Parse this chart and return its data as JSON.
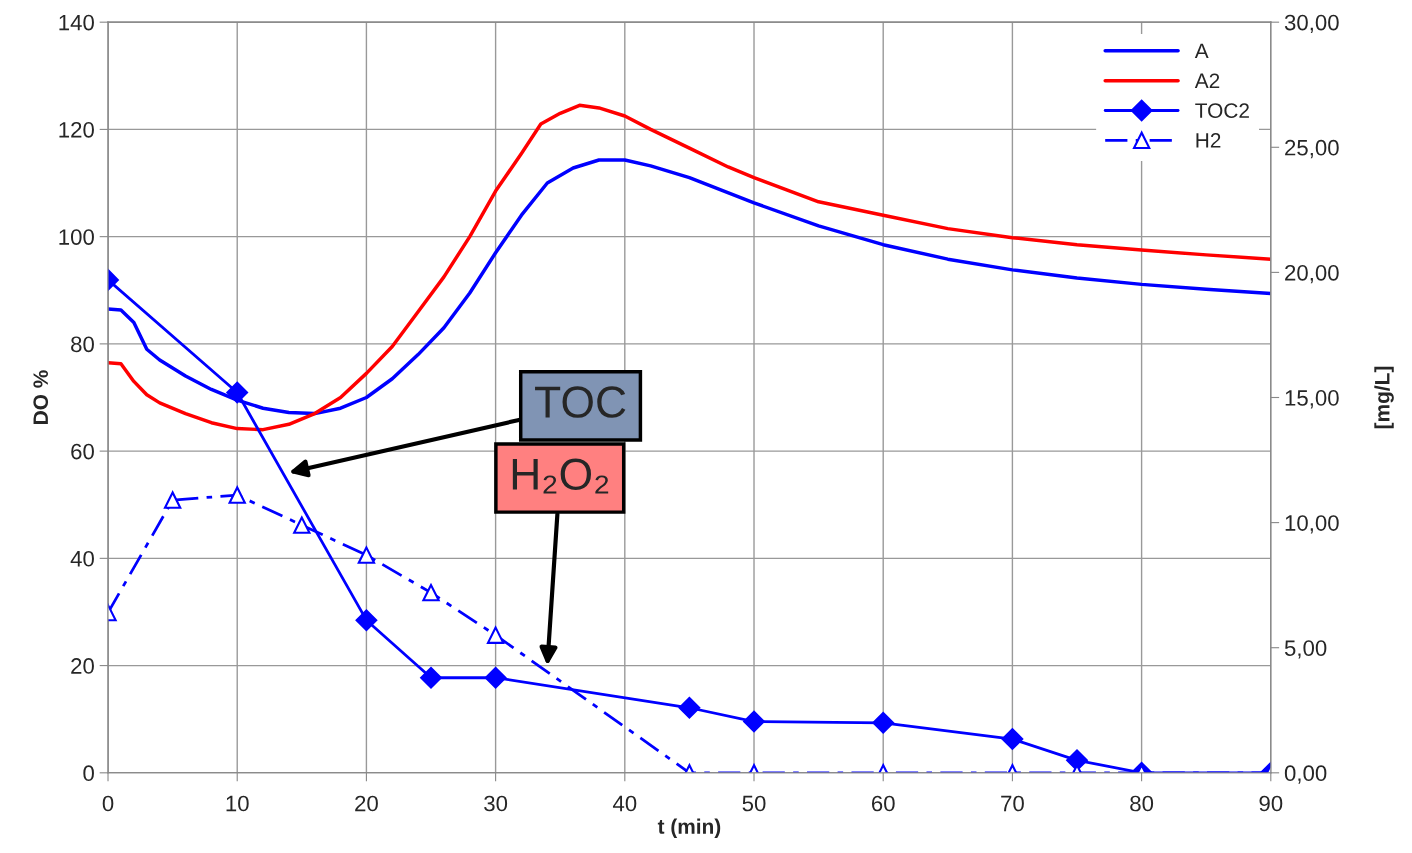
{
  "chart_data": {
    "type": "line",
    "xlabel": "t (min)",
    "ylabel": "DO %",
    "y2label": "[mg/L]",
    "xlim": [
      0,
      90
    ],
    "xticks": [
      0,
      10,
      20,
      30,
      40,
      50,
      60,
      70,
      80,
      90
    ],
    "ylim": [
      0,
      140
    ],
    "yticks": [
      0,
      20,
      40,
      60,
      80,
      100,
      120,
      140
    ],
    "y2lim": [
      0,
      30
    ],
    "y2ticks": [
      {
        "value": 0,
        "label": "0,00"
      },
      {
        "value": 5,
        "label": "5,00"
      },
      {
        "value": 10,
        "label": "10,00"
      },
      {
        "value": 15,
        "label": "15,00"
      },
      {
        "value": 20,
        "label": "20,00"
      },
      {
        "value": 25,
        "label": "25,00"
      },
      {
        "value": 30,
        "label": "30,00"
      }
    ],
    "grid": true,
    "legend": "top right",
    "series": [
      {
        "name": "A",
        "color": "#0000ff",
        "marker": "none",
        "line_style": "solid",
        "x": [
          0,
          1,
          2,
          3,
          4,
          6,
          8,
          10,
          12,
          14,
          16,
          18,
          20,
          22,
          24,
          26,
          28,
          30,
          32,
          34,
          36,
          38,
          40,
          42,
          45,
          50,
          55,
          60,
          65,
          70,
          75,
          80,
          85,
          90
        ],
        "values": [
          86.5,
          86.3,
          84,
          79,
          77,
          74,
          71.5,
          69.5,
          68,
          67.2,
          67,
          68,
          70,
          73.5,
          78,
          83,
          89.5,
          97,
          104,
          110,
          112.8,
          114.3,
          114.3,
          113.2,
          111,
          106.3,
          102,
          98.5,
          95.8,
          93.8,
          92.3,
          91.1,
          90.2,
          89.4
        ]
      },
      {
        "name": "A2",
        "color": "#ff0000",
        "marker": "none",
        "line_style": "solid",
        "x": [
          0,
          1,
          2,
          3,
          4,
          6,
          8,
          10,
          12,
          14,
          16,
          18,
          20,
          22,
          24,
          26,
          28,
          30,
          32,
          33.5,
          35,
          36.5,
          38,
          40,
          42,
          45,
          48,
          50,
          55,
          60,
          65,
          70,
          75,
          80,
          85,
          90
        ],
        "values": [
          76.5,
          76.3,
          73,
          70.5,
          69,
          67,
          65.3,
          64.2,
          64,
          65,
          67,
          70,
          74.5,
          79.5,
          86,
          92.5,
          100,
          108.5,
          115.5,
          121,
          123,
          124.5,
          124,
          122.5,
          120,
          116.5,
          113,
          111,
          106.5,
          104,
          101.5,
          99.8,
          98.5,
          97.5,
          96.6,
          95.8
        ]
      },
      {
        "name": "TOC2",
        "color": "#0000ff",
        "marker": "diamond",
        "line_style": "solid",
        "axis": "y2",
        "x": [
          0,
          10,
          20,
          25,
          30,
          45,
          50,
          60,
          70,
          75,
          80,
          90
        ],
        "values": [
          19.7,
          15.2,
          6.1,
          3.8,
          3.8,
          2.6,
          2.05,
          2.0,
          1.35,
          0.5,
          0,
          0
        ]
      },
      {
        "name": "H2",
        "color": "#0000ff",
        "marker": "triangle",
        "line_style": "dashed",
        "axis": "y2",
        "x": [
          0,
          5,
          10,
          15,
          20,
          25,
          30,
          45,
          50,
          60,
          70,
          75,
          80,
          90
        ],
        "values": [
          6.4,
          10.9,
          11.1,
          9.9,
          8.7,
          7.2,
          5.5,
          0,
          0,
          0,
          0,
          0,
          0,
          0
        ]
      }
    ],
    "annotations": [
      {
        "text": "TOC",
        "x": 14,
        "y": 56
      },
      {
        "text": "H₂O₂",
        "x": 34,
        "y": 20
      }
    ]
  }
}
